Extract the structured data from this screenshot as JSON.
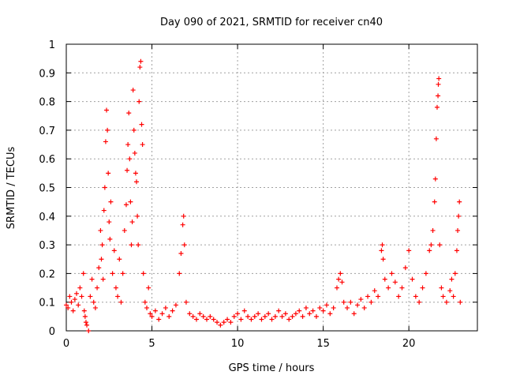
{
  "chart_data": {
    "type": "scatter",
    "title": "Day 090 of 2021, SRMTID for receiver cn40",
    "xlabel": "GPS time / hours",
    "ylabel": "SRMTID / TECUs",
    "xlim": [
      0,
      24
    ],
    "ylim": [
      0,
      1
    ],
    "xticks": [
      0,
      5,
      10,
      15,
      20
    ],
    "xtick_labels": [
      "0",
      "5",
      "10",
      "15",
      "20"
    ],
    "yticks": [
      0,
      0.1,
      0.2,
      0.3,
      0.4,
      0.5,
      0.6,
      0.7,
      0.8,
      0.9,
      1
    ],
    "ytick_labels": [
      "0",
      "0.1",
      "0.2",
      "0.3",
      "0.4",
      "0.5",
      "0.6",
      "0.7",
      "0.8",
      "0.9",
      "1"
    ],
    "grid": true,
    "marker": "+",
    "color": "#ff0000",
    "series": [
      {
        "name": "SRMTID",
        "points": [
          [
            0.0,
            0.09
          ],
          [
            0.1,
            0.08
          ],
          [
            0.2,
            0.12
          ],
          [
            0.3,
            0.1
          ],
          [
            0.4,
            0.07
          ],
          [
            0.5,
            0.11
          ],
          [
            0.6,
            0.13
          ],
          [
            0.7,
            0.09
          ],
          [
            0.8,
            0.15
          ],
          [
            0.9,
            0.12
          ],
          [
            1.0,
            0.2
          ],
          [
            1.05,
            0.07
          ],
          [
            1.1,
            0.05
          ],
          [
            1.15,
            0.03
          ],
          [
            1.2,
            0.02
          ],
          [
            1.3,
            0.0
          ],
          [
            1.4,
            0.12
          ],
          [
            1.5,
            0.18
          ],
          [
            1.6,
            0.1
          ],
          [
            1.7,
            0.08
          ],
          [
            1.8,
            0.15
          ],
          [
            1.9,
            0.22
          ],
          [
            2.0,
            0.35
          ],
          [
            2.05,
            0.25
          ],
          [
            2.1,
            0.3
          ],
          [
            2.15,
            0.18
          ],
          [
            2.2,
            0.42
          ],
          [
            2.25,
            0.5
          ],
          [
            2.3,
            0.66
          ],
          [
            2.35,
            0.77
          ],
          [
            2.4,
            0.7
          ],
          [
            2.45,
            0.55
          ],
          [
            2.5,
            0.38
          ],
          [
            2.55,
            0.32
          ],
          [
            2.6,
            0.45
          ],
          [
            2.7,
            0.2
          ],
          [
            2.8,
            0.28
          ],
          [
            2.9,
            0.15
          ],
          [
            3.0,
            0.12
          ],
          [
            3.1,
            0.25
          ],
          [
            3.2,
            0.1
          ],
          [
            3.3,
            0.2
          ],
          [
            3.4,
            0.35
          ],
          [
            3.5,
            0.44
          ],
          [
            3.55,
            0.56
          ],
          [
            3.6,
            0.65
          ],
          [
            3.65,
            0.76
          ],
          [
            3.7,
            0.6
          ],
          [
            3.75,
            0.45
          ],
          [
            3.8,
            0.3
          ],
          [
            3.85,
            0.38
          ],
          [
            3.9,
            0.84
          ],
          [
            3.95,
            0.7
          ],
          [
            4.0,
            0.62
          ],
          [
            4.05,
            0.55
          ],
          [
            4.1,
            0.52
          ],
          [
            4.15,
            0.4
          ],
          [
            4.2,
            0.3
          ],
          [
            4.25,
            0.8
          ],
          [
            4.3,
            0.92
          ],
          [
            4.35,
            0.94
          ],
          [
            4.4,
            0.72
          ],
          [
            4.45,
            0.65
          ],
          [
            4.5,
            0.2
          ],
          [
            4.6,
            0.1
          ],
          [
            4.7,
            0.08
          ],
          [
            4.8,
            0.15
          ],
          [
            4.9,
            0.06
          ],
          [
            5.0,
            0.05
          ],
          [
            5.2,
            0.07
          ],
          [
            5.4,
            0.04
          ],
          [
            5.6,
            0.06
          ],
          [
            5.8,
            0.08
          ],
          [
            6.0,
            0.05
          ],
          [
            6.2,
            0.07
          ],
          [
            6.4,
            0.09
          ],
          [
            6.6,
            0.2
          ],
          [
            6.7,
            0.27
          ],
          [
            6.8,
            0.37
          ],
          [
            6.85,
            0.4
          ],
          [
            6.9,
            0.3
          ],
          [
            7.0,
            0.1
          ],
          [
            7.2,
            0.06
          ],
          [
            7.4,
            0.05
          ],
          [
            7.6,
            0.04
          ],
          [
            7.8,
            0.06
          ],
          [
            8.0,
            0.05
          ],
          [
            8.2,
            0.04
          ],
          [
            8.4,
            0.05
          ],
          [
            8.6,
            0.04
          ],
          [
            8.8,
            0.03
          ],
          [
            9.0,
            0.02
          ],
          [
            9.2,
            0.03
          ],
          [
            9.4,
            0.04
          ],
          [
            9.6,
            0.03
          ],
          [
            9.8,
            0.05
          ],
          [
            10.0,
            0.06
          ],
          [
            10.2,
            0.04
          ],
          [
            10.4,
            0.07
          ],
          [
            10.6,
            0.05
          ],
          [
            10.8,
            0.04
          ],
          [
            11.0,
            0.05
          ],
          [
            11.2,
            0.06
          ],
          [
            11.4,
            0.04
          ],
          [
            11.6,
            0.05
          ],
          [
            11.8,
            0.06
          ],
          [
            12.0,
            0.04
          ],
          [
            12.2,
            0.05
          ],
          [
            12.4,
            0.07
          ],
          [
            12.6,
            0.05
          ],
          [
            12.8,
            0.06
          ],
          [
            13.0,
            0.04
          ],
          [
            13.2,
            0.05
          ],
          [
            13.4,
            0.06
          ],
          [
            13.6,
            0.07
          ],
          [
            13.8,
            0.05
          ],
          [
            14.0,
            0.08
          ],
          [
            14.2,
            0.06
          ],
          [
            14.4,
            0.07
          ],
          [
            14.6,
            0.05
          ],
          [
            14.8,
            0.08
          ],
          [
            15.0,
            0.07
          ],
          [
            15.2,
            0.09
          ],
          [
            15.4,
            0.06
          ],
          [
            15.6,
            0.08
          ],
          [
            15.8,
            0.15
          ],
          [
            15.9,
            0.18
          ],
          [
            16.0,
            0.2
          ],
          [
            16.1,
            0.17
          ],
          [
            16.2,
            0.1
          ],
          [
            16.4,
            0.08
          ],
          [
            16.6,
            0.1
          ],
          [
            16.8,
            0.06
          ],
          [
            17.0,
            0.09
          ],
          [
            17.2,
            0.11
          ],
          [
            17.4,
            0.08
          ],
          [
            17.6,
            0.12
          ],
          [
            17.8,
            0.1
          ],
          [
            18.0,
            0.14
          ],
          [
            18.2,
            0.12
          ],
          [
            18.4,
            0.28
          ],
          [
            18.45,
            0.3
          ],
          [
            18.5,
            0.25
          ],
          [
            18.6,
            0.18
          ],
          [
            18.8,
            0.15
          ],
          [
            19.0,
            0.2
          ],
          [
            19.2,
            0.17
          ],
          [
            19.4,
            0.12
          ],
          [
            19.6,
            0.15
          ],
          [
            19.8,
            0.22
          ],
          [
            20.0,
            0.28
          ],
          [
            20.2,
            0.18
          ],
          [
            20.4,
            0.12
          ],
          [
            20.6,
            0.1
          ],
          [
            20.8,
            0.15
          ],
          [
            21.0,
            0.2
          ],
          [
            21.2,
            0.28
          ],
          [
            21.3,
            0.3
          ],
          [
            21.4,
            0.35
          ],
          [
            21.5,
            0.45
          ],
          [
            21.55,
            0.53
          ],
          [
            21.6,
            0.67
          ],
          [
            21.65,
            0.78
          ],
          [
            21.7,
            0.82
          ],
          [
            21.72,
            0.86
          ],
          [
            21.75,
            0.88
          ],
          [
            21.8,
            0.3
          ],
          [
            21.9,
            0.15
          ],
          [
            22.0,
            0.12
          ],
          [
            22.2,
            0.1
          ],
          [
            22.4,
            0.14
          ],
          [
            22.5,
            0.18
          ],
          [
            22.6,
            0.12
          ],
          [
            22.7,
            0.2
          ],
          [
            22.8,
            0.28
          ],
          [
            22.85,
            0.35
          ],
          [
            22.9,
            0.4
          ],
          [
            22.95,
            0.45
          ],
          [
            23.0,
            0.1
          ]
        ]
      }
    ]
  }
}
